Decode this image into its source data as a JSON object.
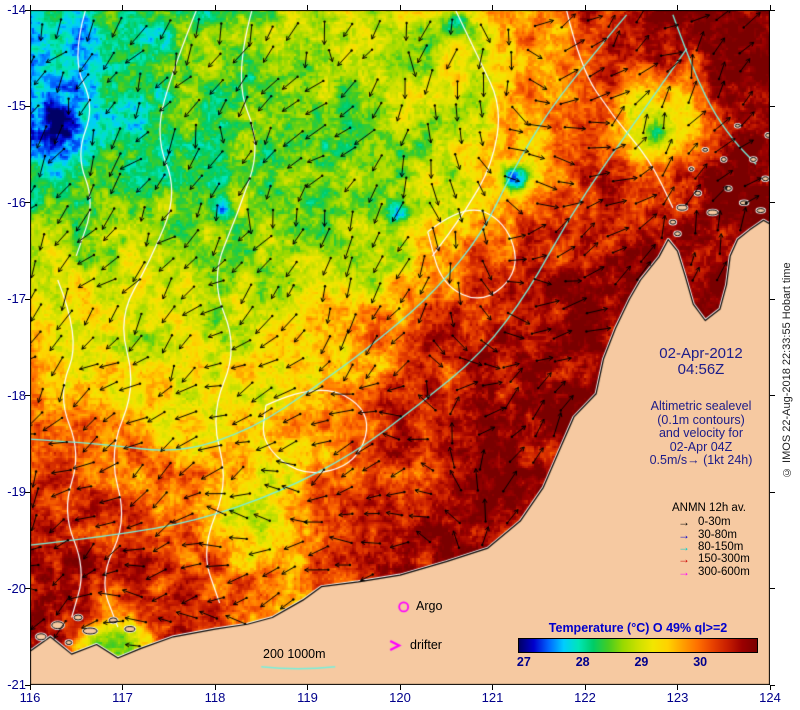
{
  "axes": {
    "x_ticks": [
      "116",
      "117",
      "118",
      "119",
      "120",
      "121",
      "122",
      "123",
      "124"
    ],
    "y_ticks": [
      "-14",
      "-15",
      "-16",
      "-17",
      "-18",
      "-19",
      "-20",
      "-21"
    ],
    "label_color": "#00008b"
  },
  "lon_range": [
    116,
    124
  ],
  "lat_range": [
    -21,
    -14
  ],
  "panel": {
    "date_line1": "02-Apr-2012",
    "date_line2": "04:56Z",
    "alt_lines": [
      "Altimetric sealevel",
      "(0.1m contours)",
      "and velocity for",
      "02-Apr 04Z",
      "0.5m/s→ (1kt 24h)"
    ],
    "anmn_title": "ANMN 12h av.",
    "arrow_glyph": "→",
    "anmn_items": [
      {
        "label": "0-30m",
        "color": "#000000"
      },
      {
        "label": "30-80m",
        "color": "#0000cd"
      },
      {
        "label": "80-150m",
        "color": "#00cccc"
      },
      {
        "label": "150-300m",
        "color": "#cc0000"
      },
      {
        "label": "300-600m",
        "color": "#ff00ff"
      }
    ],
    "argo_label": "Argo",
    "drifter_label": "drifter",
    "bathy_label": "200 1000m",
    "marker_color": "#ff00ff"
  },
  "colorbar": {
    "title": "Temperature (°C) O 49% ql>=2",
    "ticks": [
      27,
      28,
      29,
      30
    ],
    "range": [
      26.9,
      30.95
    ],
    "stops": [
      "#000066",
      "#0000cd",
      "#0066ff",
      "#00ccff",
      "#00e6b8",
      "#00cc66",
      "#44cc22",
      "#99d900",
      "#cce000",
      "#f2e600",
      "#ffd200",
      "#ffa000",
      "#ff7000",
      "#e84200",
      "#c81e00",
      "#9b0000",
      "#7a0000"
    ],
    "title_color": "#0000cd"
  },
  "copyright": "© IMOS 22-Aug-2018 22:33:55 Hobart time",
  "map_render": {
    "land_color": "#f6c9a1",
    "contour_white": "#ffffff",
    "contour_cyan": "#76f0dc",
    "coast": [
      [
        116.0,
        -20.65
      ],
      [
        116.22,
        -20.5
      ],
      [
        116.45,
        -20.68
      ],
      [
        116.72,
        -20.58
      ],
      [
        116.95,
        -20.72
      ],
      [
        117.2,
        -20.62
      ],
      [
        117.55,
        -20.5
      ],
      [
        118.0,
        -20.42
      ],
      [
        118.35,
        -20.37
      ],
      [
        118.62,
        -20.3
      ],
      [
        118.95,
        -20.12
      ],
      [
        119.15,
        -19.98
      ],
      [
        119.55,
        -19.93
      ],
      [
        120.0,
        -19.86
      ],
      [
        120.5,
        -19.72
      ],
      [
        120.95,
        -19.58
      ],
      [
        121.3,
        -19.3
      ],
      [
        121.55,
        -18.95
      ],
      [
        121.73,
        -18.55
      ],
      [
        121.88,
        -18.22
      ],
      [
        122.12,
        -17.98
      ],
      [
        122.2,
        -17.62
      ],
      [
        122.33,
        -17.3
      ],
      [
        122.48,
        -17.0
      ],
      [
        122.6,
        -16.8
      ],
      [
        122.8,
        -16.56
      ],
      [
        122.9,
        -16.38
      ],
      [
        123.0,
        -16.5
      ],
      [
        123.08,
        -16.75
      ],
      [
        123.17,
        -17.05
      ],
      [
        123.3,
        -17.22
      ],
      [
        123.46,
        -17.1
      ],
      [
        123.53,
        -16.85
      ],
      [
        123.57,
        -16.55
      ],
      [
        123.65,
        -16.38
      ],
      [
        123.78,
        -16.28
      ],
      [
        123.93,
        -16.18
      ],
      [
        124.0,
        -16.22
      ]
    ],
    "islands": [
      [
        116.12,
        -20.5,
        5,
        3
      ],
      [
        116.3,
        -20.38,
        6,
        3.5
      ],
      [
        116.52,
        -20.3,
        4,
        2.5
      ],
      [
        116.65,
        -20.44,
        7,
        3
      ],
      [
        116.9,
        -20.33,
        4,
        2.5
      ],
      [
        117.08,
        -20.42,
        5,
        2.5
      ],
      [
        116.42,
        -20.56,
        3,
        2
      ],
      [
        123.05,
        -16.05,
        5,
        2.5
      ],
      [
        123.22,
        -15.9,
        3,
        2
      ],
      [
        123.38,
        -16.1,
        5,
        2.5
      ],
      [
        123.55,
        -15.85,
        3,
        2
      ],
      [
        123.72,
        -16.0,
        4,
        2
      ],
      [
        123.5,
        -15.55,
        2.5,
        2
      ],
      [
        123.82,
        -15.55,
        3,
        2
      ],
      [
        123.95,
        -15.75,
        3,
        2
      ],
      [
        123.3,
        -15.45,
        2.5,
        1.5
      ],
      [
        123.9,
        -16.08,
        4,
        2
      ],
      [
        123.98,
        -15.3,
        2.5,
        2
      ],
      [
        123.65,
        -15.2,
        2.5,
        1.5
      ],
      [
        123.15,
        -15.65,
        2,
        1.5
      ],
      [
        122.95,
        -16.2,
        3,
        2
      ],
      [
        123.0,
        -16.32,
        3,
        2
      ]
    ],
    "white_contours": [
      [
        [
          116.6,
          -14.0
        ],
        [
          116.45,
          -14.5
        ],
        [
          116.7,
          -15.0
        ],
        [
          116.5,
          -15.5
        ],
        [
          116.7,
          -16.0
        ],
        [
          116.5,
          -16.55
        ]
      ],
      [
        [
          116.3,
          -16.8
        ],
        [
          116.55,
          -17.4
        ],
        [
          116.3,
          -18.0
        ],
        [
          116.55,
          -18.6
        ],
        [
          116.35,
          -19.2
        ],
        [
          116.6,
          -19.8
        ],
        [
          116.45,
          -20.3
        ]
      ],
      [
        [
          117.8,
          -14.0
        ],
        [
          117.55,
          -14.6
        ],
        [
          117.35,
          -15.3
        ],
        [
          117.6,
          -15.9
        ],
        [
          117.3,
          -16.6
        ],
        [
          116.95,
          -17.2
        ],
        [
          117.15,
          -17.9
        ],
        [
          116.85,
          -18.6
        ],
        [
          117.05,
          -19.3
        ],
        [
          116.75,
          -19.9
        ],
        [
          116.95,
          -20.4
        ]
      ],
      [
        [
          118.4,
          -14.0
        ],
        [
          118.2,
          -14.7
        ],
        [
          118.5,
          -15.4
        ],
        [
          118.25,
          -16.1
        ],
        [
          117.95,
          -16.8
        ],
        [
          118.25,
          -17.5
        ],
        [
          117.95,
          -18.2
        ],
        [
          118.15,
          -18.9
        ],
        [
          117.85,
          -19.6
        ],
        [
          118.05,
          -20.15
        ]
      ],
      [
        [
          120.6,
          -14.0
        ],
        [
          120.85,
          -14.5
        ],
        [
          121.1,
          -15.0
        ],
        [
          121.0,
          -15.6
        ],
        [
          120.7,
          -16.1
        ],
        [
          120.35,
          -16.55
        ]
      ],
      [
        [
          121.8,
          -14.0
        ],
        [
          121.95,
          -14.6
        ],
        [
          122.3,
          -15.1
        ],
        [
          122.7,
          -15.55
        ],
        [
          122.95,
          -16.05
        ]
      ],
      [
        [
          120.3,
          -16.3
        ],
        [
          120.7,
          -16.0
        ],
        [
          121.15,
          -16.2
        ],
        [
          121.3,
          -16.7
        ],
        [
          120.9,
          -17.05
        ],
        [
          120.45,
          -16.85
        ],
        [
          120.3,
          -16.3
        ]
      ],
      [
        [
          118.55,
          -18.1
        ],
        [
          119.1,
          -17.85
        ],
        [
          119.7,
          -18.15
        ],
        [
          119.55,
          -18.7
        ],
        [
          118.95,
          -18.85
        ],
        [
          118.5,
          -18.5
        ],
        [
          118.55,
          -18.1
        ]
      ]
    ],
    "cyan_contours": [
      [
        [
          116.0,
          -18.45
        ],
        [
          116.8,
          -18.5
        ],
        [
          117.6,
          -18.6
        ],
        [
          118.4,
          -18.35
        ],
        [
          119.1,
          -17.9
        ],
        [
          119.8,
          -17.4
        ],
        [
          120.4,
          -16.9
        ],
        [
          120.9,
          -16.3
        ],
        [
          121.2,
          -15.7
        ],
        [
          121.6,
          -15.05
        ],
        [
          122.1,
          -14.45
        ],
        [
          122.45,
          -14.05
        ]
      ],
      [
        [
          116.0,
          -19.55
        ],
        [
          116.9,
          -19.45
        ],
        [
          117.8,
          -19.3
        ],
        [
          118.7,
          -19.0
        ],
        [
          119.5,
          -18.6
        ],
        [
          120.2,
          -18.1
        ],
        [
          120.9,
          -17.55
        ],
        [
          121.4,
          -16.9
        ],
        [
          121.8,
          -16.2
        ],
        [
          122.25,
          -15.55
        ],
        [
          122.7,
          -14.95
        ],
        [
          123.1,
          -14.4
        ]
      ],
      [
        [
          122.95,
          -14.05
        ],
        [
          123.12,
          -14.5
        ],
        [
          123.35,
          -15.0
        ],
        [
          123.6,
          -15.35
        ],
        [
          123.85,
          -15.6
        ]
      ]
    ],
    "sst_points": [
      [
        116.2,
        -14.2,
        27.6
      ],
      [
        117.2,
        -14.4,
        28.2
      ],
      [
        118.2,
        -14.3,
        28.5
      ],
      [
        119.4,
        -14.2,
        29.2
      ],
      [
        120.4,
        -14.3,
        28.6
      ],
      [
        121.3,
        -14.4,
        29.6
      ],
      [
        122.3,
        -14.3,
        30.7
      ],
      [
        123.4,
        -14.4,
        30.9
      ],
      [
        116.4,
        -15.3,
        27.3
      ],
      [
        117.4,
        -15.4,
        28.2
      ],
      [
        118.4,
        -15.4,
        28.6
      ],
      [
        119.4,
        -15.4,
        28.3
      ],
      [
        120.4,
        -15.5,
        28.9
      ],
      [
        121.3,
        -15.5,
        29.4
      ],
      [
        122.2,
        -15.5,
        30.4
      ],
      [
        122.75,
        -15.1,
        28.3,
        0.3
      ],
      [
        123.5,
        -15.6,
        30.8
      ],
      [
        116.4,
        -16.3,
        28.9
      ],
      [
        117.5,
        -16.2,
        28.4
      ],
      [
        118.5,
        -16.3,
        28.7
      ],
      [
        119.5,
        -16.1,
        28.3
      ],
      [
        120.4,
        -16.3,
        29.2
      ],
      [
        121.3,
        -16.5,
        30.6
      ],
      [
        122.4,
        -16.6,
        30.8
      ],
      [
        123.4,
        -16.8,
        30.8
      ],
      [
        116.4,
        -17.3,
        29.4
      ],
      [
        117.4,
        -17.4,
        28.9
      ],
      [
        118.3,
        -17.2,
        28.7
      ],
      [
        119.4,
        -17.5,
        29.5
      ],
      [
        120.4,
        -17.5,
        30.4
      ],
      [
        121.4,
        -17.7,
        30.7
      ],
      [
        122.9,
        -17.4,
        31.0
      ],
      [
        116.6,
        -18.1,
        29.7
      ],
      [
        117.7,
        -18.1,
        29.2
      ],
      [
        118.8,
        -18.1,
        29.5
      ],
      [
        119.9,
        -18.2,
        30.3
      ],
      [
        121.0,
        -18.3,
        30.7
      ],
      [
        121.9,
        -18.6,
        31.0
      ],
      [
        116.3,
        -18.9,
        30.5
      ],
      [
        117.3,
        -19.0,
        30.0
      ],
      [
        118.3,
        -18.9,
        29.3
      ],
      [
        118.45,
        -19.2,
        28.4,
        0.25
      ],
      [
        119.4,
        -19.2,
        29.8
      ],
      [
        120.4,
        -19.3,
        30.6
      ],
      [
        116.4,
        -19.9,
        30.8
      ],
      [
        117.4,
        -20.0,
        30.6
      ],
      [
        118.4,
        -19.9,
        30.1
      ],
      [
        118.8,
        -20.1,
        29.5,
        0.3
      ],
      [
        119.6,
        -19.9,
        30.7
      ],
      [
        120.6,
        -19.6,
        31.0
      ],
      [
        116.9,
        -20.5,
        28.2,
        0.2
      ],
      [
        121.25,
        -15.73,
        26.2,
        0.08
      ],
      [
        119.95,
        -16.1,
        26.5,
        0.07
      ],
      [
        116.35,
        -15.15,
        26.4,
        0.1
      ],
      [
        118.05,
        -16.05,
        26.8,
        0.06
      ],
      [
        120.6,
        -14.15,
        27.2,
        0.08
      ],
      [
        122.75,
        -15.25,
        27.0,
        0.07
      ]
    ],
    "flow_points": [
      [
        116.5,
        -14.8,
        115
      ],
      [
        116.5,
        -17.0,
        105
      ],
      [
        116.6,
        -19.2,
        140
      ],
      [
        117.0,
        -20.3,
        170
      ],
      [
        118.0,
        -15.0,
        120
      ],
      [
        118.0,
        -17.5,
        130
      ],
      [
        118.3,
        -19.6,
        170
      ],
      [
        119.5,
        -14.3,
        110
      ],
      [
        119.8,
        -16.0,
        135
      ],
      [
        119.8,
        -18.3,
        160
      ],
      [
        119.5,
        -19.8,
        185
      ],
      [
        121.0,
        -15.0,
        100
      ],
      [
        120.8,
        -16.6,
        60
      ],
      [
        121.0,
        -18.0,
        -40
      ],
      [
        122.0,
        -14.3,
        -55
      ],
      [
        122.5,
        -15.8,
        -50
      ],
      [
        122.3,
        -17.3,
        -45
      ],
      [
        121.8,
        -18.7,
        -35
      ],
      [
        123.5,
        -14.5,
        -50
      ],
      [
        123.6,
        -15.8,
        -60
      ]
    ],
    "markers": {
      "argo": [
        120.04,
        -20.19
      ],
      "drifter": [
        119.97,
        -20.59
      ],
      "bathy_line": [
        [
          118.5,
          -20.81
        ],
        [
          119.3,
          -20.81
        ]
      ]
    }
  }
}
